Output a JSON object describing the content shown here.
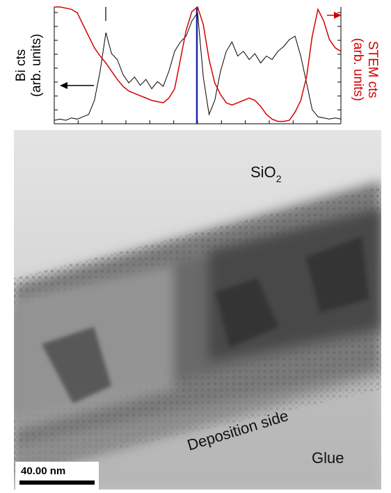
{
  "chart_data": {
    "type": "line",
    "y_label": "Bi cts",
    "y_label_units": "(arb. units)",
    "y2_label": "STEM cts",
    "y2_label_units": "(arb. units)",
    "x": [
      0,
      2,
      4,
      6,
      8,
      10,
      12,
      14,
      16,
      18,
      20,
      22,
      24,
      26,
      28,
      30,
      32,
      34,
      36,
      38,
      40,
      42,
      44,
      46,
      48,
      50,
      52,
      54,
      56,
      58,
      60,
      62,
      64,
      66,
      68,
      70,
      72,
      74,
      76,
      78,
      80,
      82,
      84,
      86,
      88,
      90,
      92,
      94,
      96,
      98,
      100
    ],
    "xlim": [
      0,
      100
    ],
    "ylim": [
      0,
      100
    ],
    "y2lim": [
      0,
      100
    ],
    "series": [
      {
        "name": "Bi cts",
        "color": "#000000",
        "values": [
          3,
          4,
          3,
          5,
          4,
          6,
          8,
          20,
          45,
          78,
          60,
          55,
          42,
          35,
          40,
          33,
          38,
          30,
          36,
          32,
          45,
          62,
          70,
          75,
          88,
          95,
          40,
          8,
          20,
          45,
          62,
          70,
          58,
          62,
          55,
          60,
          52,
          58,
          55,
          62,
          66,
          72,
          75,
          58,
          35,
          12,
          6,
          5,
          4,
          5,
          4
        ]
      },
      {
        "name": "STEM cts",
        "color": "#d40000",
        "axis": "y2",
        "values": [
          100,
          100,
          99,
          98,
          95,
          85,
          75,
          65,
          58,
          52,
          45,
          38,
          32,
          28,
          26,
          24,
          22,
          20,
          19,
          18,
          22,
          30,
          55,
          80,
          96,
          100,
          85,
          55,
          35,
          25,
          18,
          16,
          18,
          20,
          22,
          20,
          15,
          8,
          4,
          2,
          2,
          3,
          10,
          20,
          40,
          75,
          98,
          88,
          72,
          65,
          62
        ]
      }
    ]
  },
  "image": {
    "region_top": {
      "label": "SiO",
      "subscript": "2"
    },
    "region_interface": "Deposition side",
    "region_bottom": "Glue",
    "scale_bar": "40.00 nm"
  }
}
